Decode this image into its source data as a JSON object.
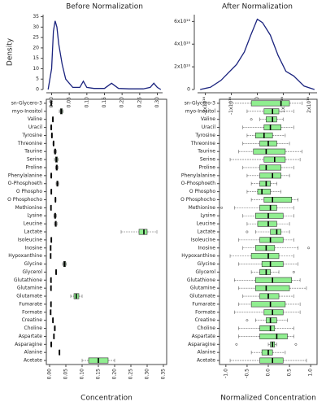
{
  "chart_data": [
    {
      "type": "line",
      "title": "Before Normalization",
      "ylabel": "Density",
      "color": "#1a237e",
      "x": [
        -0.01,
        0,
        0.005,
        0.01,
        0.015,
        0.02,
        0.03,
        0.04,
        0.06,
        0.08,
        0.09,
        0.1,
        0.12,
        0.15,
        0.17,
        0.19,
        0.22,
        0.26,
        0.28,
        0.29,
        0.3,
        0.31
      ],
      "values": [
        0,
        10,
        28,
        33,
        30,
        22,
        12,
        5,
        1,
        1,
        4,
        1,
        0.5,
        0.5,
        3,
        0.5,
        0.3,
        0.3,
        1,
        3,
        1,
        0
      ],
      "xlim": [
        -0.015,
        0.315
      ],
      "ylim": [
        0,
        36
      ],
      "xticks": [
        {
          "value": 0,
          "label": "0.00"
        },
        {
          "value": 0.05,
          "label": "0.05"
        },
        {
          "value": 0.1,
          "label": "0.10"
        },
        {
          "value": 0.15,
          "label": "0.15"
        },
        {
          "value": 0.2,
          "label": "0.20"
        },
        {
          "value": 0.25,
          "label": "0.25"
        },
        {
          "value": 0.3,
          "label": "0.30"
        }
      ],
      "yticks": [
        0,
        5,
        10,
        15,
        20,
        25,
        30,
        35
      ]
    },
    {
      "type": "line",
      "title": "After Normalization",
      "color": "#1a237e",
      "x": [
        -2.2e+16,
        -1.8e+16,
        -1.4e+16,
        -1.1e+16,
        -8000000000000000.0,
        -5000000000000000.0,
        -2500000000000000.0,
        0,
        2000000000000000.0,
        5000000000000000.0,
        8000000000000000.0,
        1.1e+16,
        1.4e+16,
        1.8e+16,
        2.2e+16
      ],
      "values": [
        0,
        2000000000000000.0,
        8000000000000000.0,
        1.5e+16,
        2.2e+16,
        3.3e+16,
        4.8e+16,
        6.2e+16,
        5.9e+16,
        4.8e+16,
        3e+16,
        1.6e+16,
        1.2e+16,
        3000000000000000.0,
        0
      ],
      "xlim": [
        -2.3e+16,
        2.3e+16
      ],
      "ylim": [
        0,
        6.6e+16
      ],
      "xticks": [
        {
          "value": -2e+16,
          "label": "-2x10¹⁶"
        },
        {
          "value": -1e+16,
          "label": "-1x10¹⁶"
        },
        {
          "value": 0,
          "label": "0"
        },
        {
          "value": 1e+16,
          "label": "1x10¹⁶"
        },
        {
          "value": 2e+16,
          "label": "2x10¹⁶"
        }
      ],
      "yticks": [
        {
          "value": 0,
          "label": "0"
        },
        {
          "value": 2e+16,
          "label": "2x10¹⁶"
        },
        {
          "value": 4e+16,
          "label": "4x10¹⁶"
        },
        {
          "value": 6e+16,
          "label": "6x10¹⁶"
        }
      ]
    },
    {
      "type": "box",
      "xlabel": "Concentration",
      "color": "#90ee90",
      "categories": [
        "sn-Glycero-3",
        "myo-Inositol",
        "Valine",
        "Uracil",
        "Tyrosine",
        "Threonine",
        "Taurine",
        "Serine",
        "Proline",
        "Phenylalanine",
        "O-Phosphoeth",
        "O Phospho",
        "O Phosphocho",
        "Methionine",
        "Lysine",
        "Leucine",
        "Lactate",
        "Isoleucine",
        "Inosine",
        "Hypoxanthine",
        "Glycine",
        "Glycerol",
        "Glutathione",
        "Glutamine",
        "Glutamate",
        "Fumarate",
        "Formate",
        "Creatine",
        "Choline",
        "Aspartate",
        "Asparagine",
        "Alanine",
        "Acetate"
      ],
      "boxes": [
        [
          0.003,
          0.004,
          0.005,
          0.006,
          0.007
        ],
        [
          0.03,
          0.033,
          0.036,
          0.039,
          0.042
        ],
        [
          0.008,
          0.009,
          0.01,
          0.011,
          0.012
        ],
        [
          0.003,
          0.004,
          0.005,
          0.006,
          0.007
        ],
        [
          0.005,
          0.006,
          0.007,
          0.008,
          0.009
        ],
        [
          0.01,
          0.011,
          0.012,
          0.013,
          0.014
        ],
        [
          0.013,
          0.015,
          0.017,
          0.019,
          0.021
        ],
        [
          0.015,
          0.018,
          0.021,
          0.024,
          0.027
        ],
        [
          0.018,
          0.02,
          0.022,
          0.024,
          0.026
        ],
        [
          0.003,
          0.004,
          0.005,
          0.006,
          0.007
        ],
        [
          0.02,
          0.022,
          0.024,
          0.026,
          0.028
        ],
        [
          0.004,
          0.0045,
          0.005,
          0.0055,
          0.006
        ],
        [
          0.016,
          0.017,
          0.018,
          0.019,
          0.02
        ],
        [
          0.003,
          0.0035,
          0.004,
          0.0045,
          0.005
        ],
        [
          0.013,
          0.015,
          0.017,
          0.019,
          0.021
        ],
        [
          0.015,
          0.017,
          0.019,
          0.021,
          0.023
        ],
        [
          0.22,
          0.275,
          0.29,
          0.3,
          0.33
        ],
        [
          0.004,
          0.0045,
          0.005,
          0.0055,
          0.006
        ],
        [
          0.002,
          0.0025,
          0.003,
          0.0035,
          0.004
        ],
        [
          0.002,
          0.0025,
          0.003,
          0.0035,
          0.004
        ],
        [
          0.04,
          0.043,
          0.046,
          0.049,
          0.052
        ],
        [
          0.018,
          0.019,
          0.02,
          0.021,
          0.022
        ],
        [
          0.003,
          0.0035,
          0.004,
          0.0045,
          0.005
        ],
        [
          0.003,
          0.0035,
          0.004,
          0.0045,
          0.005
        ],
        [
          0.065,
          0.075,
          0.082,
          0.09,
          0.1
        ],
        [
          0.003,
          0.0035,
          0.004,
          0.0045,
          0.005
        ],
        [
          0.002,
          0.0025,
          0.003,
          0.0035,
          0.004
        ],
        [
          0.009,
          0.0095,
          0.01,
          0.0105,
          0.011
        ],
        [
          0.014,
          0.015,
          0.016,
          0.017,
          0.018
        ],
        [
          0.012,
          0.0125,
          0.013,
          0.0135,
          0.014
        ],
        [
          0.003,
          0.004,
          0.005,
          0.006,
          0.007
        ],
        [
          0.029,
          0.0295,
          0.03,
          0.0305,
          0.031
        ],
        [
          0.1,
          0.12,
          0.15,
          0.18,
          0.2
        ]
      ],
      "xlim": [
        -0.01,
        0.36
      ],
      "xticks": [
        {
          "value": 0,
          "label": "0.00"
        },
        {
          "value": 0.05,
          "label": "0.05"
        },
        {
          "value": 0.1,
          "label": "0.10"
        },
        {
          "value": 0.15,
          "label": "0.15"
        },
        {
          "value": 0.2,
          "label": "0.20"
        },
        {
          "value": 0.25,
          "label": "0.25"
        },
        {
          "value": 0.3,
          "label": "0.30"
        },
        {
          "value": 0.35,
          "label": "0.35"
        }
      ]
    },
    {
      "type": "box",
      "xlabel": "Normalized Concentration",
      "color": "#90ee90",
      "categories": [
        "sn-Glycero-3",
        "myo-Inositol",
        "Valine",
        "Uracil",
        "Tyrosine",
        "Threonine",
        "Taurine",
        "Serine",
        "Proline",
        "Phenylalanine",
        "O-Phosphoeth",
        "O Phospho",
        "O Phosphocho",
        "Methionine",
        "Lysine",
        "Leucine",
        "Lactate",
        "Isoleucine",
        "Inosine",
        "Hypoxanthine",
        "Glycine",
        "Glycerol",
        "Glutathione",
        "Glutamine",
        "Glutamate",
        "Fumarate",
        "Formate",
        "Creatine",
        "Choline",
        "Aspartate",
        "Asparagine",
        "Alanine",
        "Acetate"
      ],
      "boxes": [
        [
          -0.9,
          -0.4,
          0.3,
          0.5,
          0.8
        ],
        [
          -0.5,
          -0.1,
          0.1,
          0.25,
          0.6
        ],
        [
          -0.2,
          -0.05,
          0.1,
          0.2,
          0.35
        ],
        [
          -0.6,
          -0.1,
          0.05,
          0.3,
          0.6
        ],
        [
          -0.5,
          -0.3,
          -0.1,
          0.1,
          0.4
        ],
        [
          -0.6,
          -0.2,
          0,
          0.2,
          0.5
        ],
        [
          -0.7,
          -0.35,
          -0.05,
          0.4,
          0.8
        ],
        [
          -0.9,
          -0.1,
          0.15,
          0.4,
          0.75
        ],
        [
          -0.6,
          -0.2,
          -0.05,
          0.3,
          0.6
        ],
        [
          -0.5,
          -0.2,
          0.1,
          0.3,
          0.5
        ],
        [
          -0.4,
          -0.2,
          -0.05,
          0.05,
          0.2
        ],
        [
          -0.5,
          -0.25,
          -0.15,
          0.05,
          0.3
        ],
        [
          -0.4,
          -0.1,
          0.1,
          0.55,
          0.7
        ],
        [
          -0.8,
          -0.2,
          0.05,
          0.2,
          0.6
        ],
        [
          -0.6,
          -0.3,
          0,
          0.35,
          0.6
        ],
        [
          -0.5,
          -0.25,
          0,
          0.2,
          0.5
        ],
        [
          -0.3,
          0.05,
          0.2,
          0.3,
          0.5
        ],
        [
          -0.7,
          -0.2,
          0.05,
          0.35,
          0.6
        ],
        [
          -0.6,
          -0.3,
          -0.05,
          0.15,
          0.7
        ],
        [
          -0.9,
          -0.4,
          0,
          0.25,
          0.6
        ],
        [
          -0.7,
          -0.15,
          0.05,
          0.35,
          0.7
        ],
        [
          -0.4,
          -0.2,
          -0.05,
          0.05,
          0.25
        ],
        [
          -0.8,
          -0.3,
          0.1,
          0.55,
          0.75
        ],
        [
          -0.7,
          -0.3,
          -0.05,
          0.5,
          0.9
        ],
        [
          -0.6,
          -0.2,
          0,
          0.25,
          0.6
        ],
        [
          -0.7,
          -0.4,
          0.05,
          0.4,
          0.75
        ],
        [
          -0.8,
          -0.1,
          0.1,
          0.35,
          0.75
        ],
        [
          -0.3,
          -0.05,
          0.05,
          0.2,
          0.45
        ],
        [
          -0.7,
          -0.2,
          0.05,
          0.15,
          0.6
        ],
        [
          -0.7,
          -0.2,
          0.2,
          0.45,
          0.6
        ],
        [
          0,
          0.05,
          0.1,
          0.15,
          0.2
        ],
        [
          -0.4,
          -0.15,
          0,
          0.1,
          0.4
        ],
        [
          -0.9,
          -0.2,
          0.1,
          0.35,
          0.9
        ]
      ],
      "outliers": [
        [],
        [],
        [
          -0.4
        ],
        [],
        [],
        [],
        [],
        [],
        [],
        [],
        [],
        [],
        [],
        [
          -1.1
        ],
        [],
        [],
        [
          -0.5
        ],
        [],
        [
          0.95
        ],
        [],
        [],
        [
          0.6
        ],
        [],
        [],
        [],
        [],
        [],
        [
          -0.5
        ],
        [],
        [],
        [
          -0.75,
          0.65
        ],
        [],
        []
      ],
      "xlim": [
        -1.15,
        1.15
      ],
      "xticks": [
        {
          "value": -1,
          "label": "-1.0"
        },
        {
          "value": -0.5,
          "label": "-0.5"
        },
        {
          "value": 0,
          "label": "0.0"
        },
        {
          "value": 0.5,
          "label": "0.5"
        },
        {
          "value": 1,
          "label": "1.0"
        }
      ]
    }
  ]
}
